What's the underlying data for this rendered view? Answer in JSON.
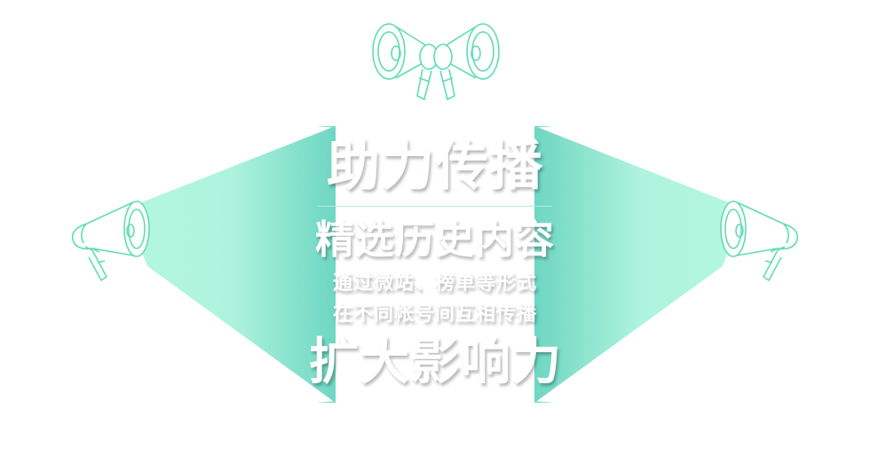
{
  "colors": {
    "accent": "#5fdcb4",
    "beam_light": "#b5f7e0",
    "beam_mid": "#8fe6cf",
    "beam_dark": "#6dd6c2",
    "line": "#5fdcb4",
    "panel": "#ffffff",
    "text": "#ffffff"
  },
  "icons": {
    "top": "double-megaphone-icon",
    "left": "megaphone-icon",
    "right": "megaphone-icon"
  },
  "text": {
    "line1": "助力传播",
    "line2": "精选历史内容",
    "line3": "通过微站、榜单等形式",
    "line4": "在不同帐号间互相传播",
    "line5": "扩大影响力"
  }
}
